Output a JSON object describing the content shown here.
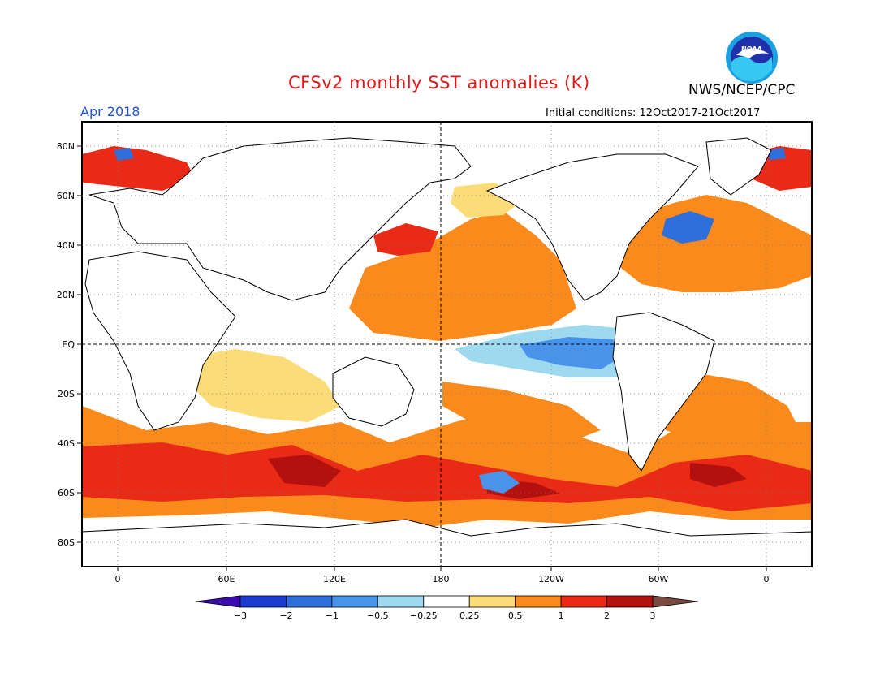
{
  "title": "CFSv2 monthly SST anomalies (K)",
  "agency": "NWS/NCEP/CPC",
  "logo_text": "NOAA",
  "valid_month": "Apr 2018",
  "initial_conditions": "Initial conditions: 12Oct2017-21Oct2017",
  "map": {
    "lon_labels": [
      "0",
      "60E",
      "120E",
      "180",
      "120W",
      "60W",
      "0"
    ],
    "lat_labels": [
      "80N",
      "60N",
      "40N",
      "20N",
      "EQ",
      "20S",
      "40S",
      "60S",
      "80S"
    ]
  },
  "colorbar": {
    "labels": [
      "-3",
      "-2",
      "-1",
      "-0.5",
      "-0.25",
      "0.25",
      "0.5",
      "1",
      "2",
      "3"
    ],
    "colors": [
      "#1e3bcf",
      "#2f6fdc",
      "#4a93ea",
      "#9ed9f0",
      "#ffffff",
      "#fcdc78",
      "#fb8a1c",
      "#e82a16",
      "#b41010"
    ],
    "low_color": "#3a0cb0",
    "high_color": "#7a4a40"
  }
}
